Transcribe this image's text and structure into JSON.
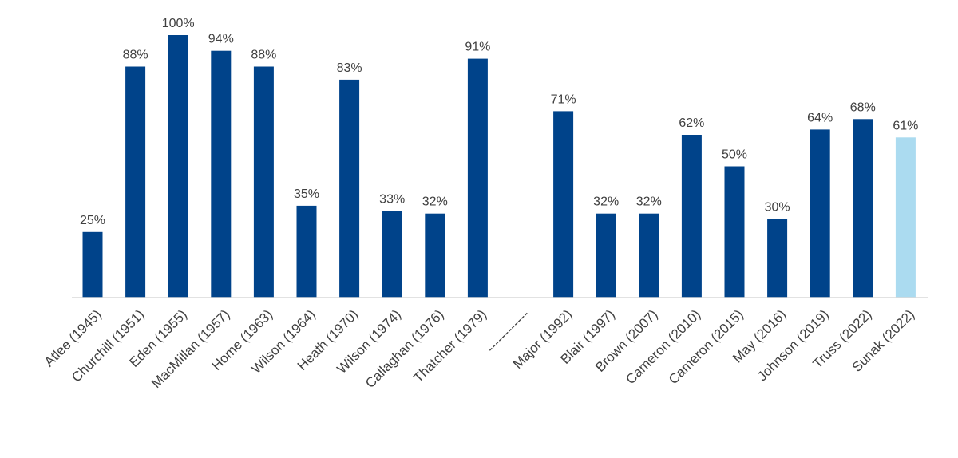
{
  "chart_data": {
    "type": "bar",
    "categories": [
      "Atlee (1945)",
      "Churchill (1951)",
      "Eden (1955)",
      "MacMillan (1957)",
      "Home (1963)",
      "Wilson (1964)",
      "Heath (1970)",
      "Wilson (1974)",
      "Callaghan (1976)",
      "Thatcher (1979)",
      "------------",
      "Major (1992)",
      "Blair (1997)",
      "Brown (2007)",
      "Cameron (2010)",
      "Cameron (2015)",
      "May (2016)",
      "Johnson (2019)",
      "Truss (2022)",
      "Sunak (2022)"
    ],
    "values": [
      25,
      88,
      100,
      94,
      88,
      35,
      83,
      33,
      32,
      91,
      null,
      71,
      32,
      32,
      62,
      50,
      30,
      64,
      68,
      61
    ],
    "data_labels": [
      "25%",
      "88%",
      "100%",
      "94%",
      "88%",
      "35%",
      "83%",
      "33%",
      "32%",
      "91%",
      "",
      "71%",
      "32%",
      "32%",
      "62%",
      "50%",
      "30%",
      "64%",
      "68%",
      "61%"
    ],
    "colors": [
      "#00438a",
      "#00438a",
      "#00438a",
      "#00438a",
      "#00438a",
      "#00438a",
      "#00438a",
      "#00438a",
      "#00438a",
      "#00438a",
      "#00438a",
      "#00438a",
      "#00438a",
      "#00438a",
      "#00438a",
      "#00438a",
      "#00438a",
      "#00438a",
      "#00438a",
      "#abdbf0"
    ],
    "ylim": [
      0,
      100
    ],
    "grid": false,
    "legend": "none",
    "baseline_color": "#d9d9d9",
    "title": "",
    "xlabel": "",
    "ylabel": ""
  }
}
